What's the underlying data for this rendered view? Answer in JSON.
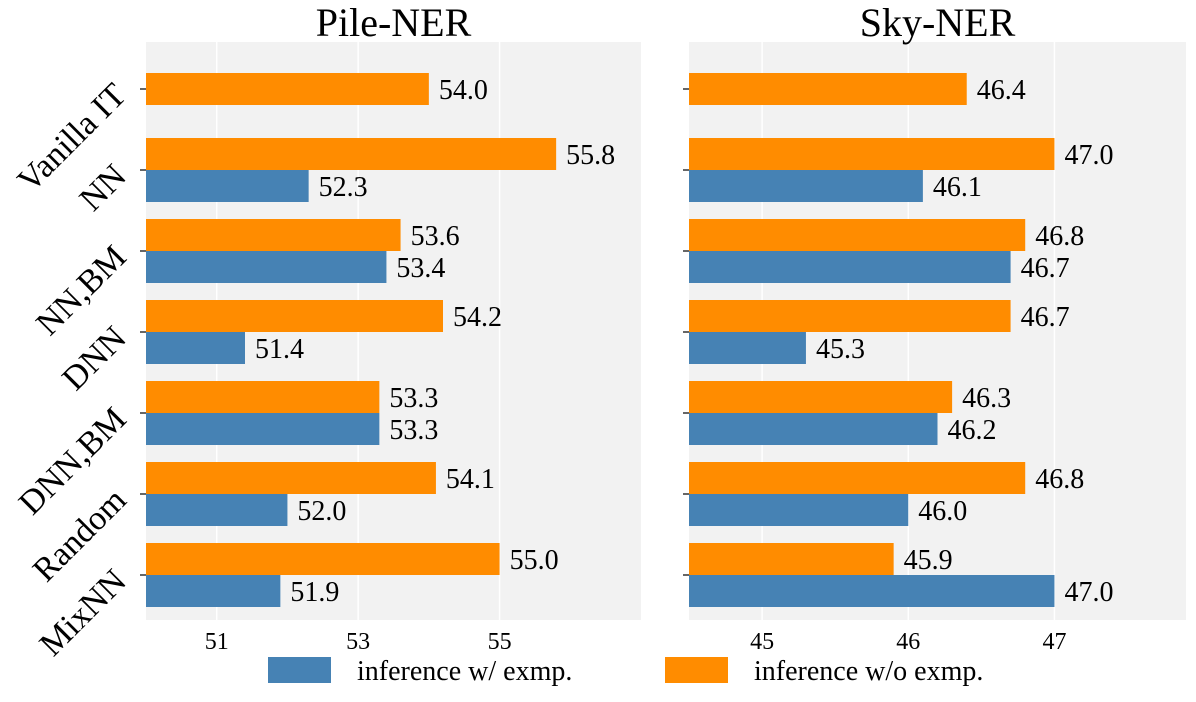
{
  "legend": {
    "with": "inference w/ exmp.",
    "without": "inference w/o exmp."
  },
  "colors": {
    "with": "#4682b4",
    "without": "#ff8c00",
    "panel_bg": "#f2f2f2",
    "grid": "#ffffff"
  },
  "chart_data": [
    {
      "type": "bar",
      "orientation": "horizontal",
      "title": "Pile-NER",
      "categories": [
        "Vanilla IT",
        "NN",
        "NN,BM",
        "DNN",
        "DNN,BM",
        "Random",
        "MixNN"
      ],
      "series": [
        {
          "name": "inference w/o exmp.",
          "values": [
            54.0,
            55.8,
            53.6,
            54.2,
            53.3,
            54.1,
            55.0
          ]
        },
        {
          "name": "inference w/ exmp.",
          "values": [
            null,
            52.3,
            53.4,
            51.4,
            53.3,
            52.0,
            51.9
          ]
        }
      ],
      "value_labels_w_o": [
        "54.0",
        "55.8",
        "53.6",
        "54.2",
        "53.3",
        "54.1",
        "55.0"
      ],
      "value_labels_w": [
        "",
        "52.3",
        "53.4",
        "51.4",
        "53.3",
        "52.0",
        "51.9"
      ],
      "xticks": [
        51,
        53,
        55
      ],
      "xlim": [
        50.0,
        57.0
      ],
      "xlabel": "",
      "ylabel": ""
    },
    {
      "type": "bar",
      "orientation": "horizontal",
      "title": "Sky-NER",
      "categories": [
        "Vanilla IT",
        "NN",
        "NN,BM",
        "DNN",
        "DNN,BM",
        "Random",
        "MixNN"
      ],
      "series": [
        {
          "name": "inference w/o exmp.",
          "values": [
            46.4,
            47.0,
            46.8,
            46.7,
            46.3,
            46.8,
            45.9
          ]
        },
        {
          "name": "inference w/ exmp.",
          "values": [
            null,
            46.1,
            46.7,
            45.3,
            46.2,
            46.0,
            47.0
          ]
        }
      ],
      "value_labels_w_o": [
        "46.4",
        "47.0",
        "46.8",
        "46.7",
        "46.3",
        "46.8",
        "45.9"
      ],
      "value_labels_w": [
        "",
        "46.1",
        "46.7",
        "45.3",
        "46.2",
        "46.0",
        "47.0"
      ],
      "xticks": [
        45,
        46,
        47
      ],
      "xlim": [
        44.5,
        47.9
      ],
      "xlabel": "",
      "ylabel": ""
    }
  ]
}
